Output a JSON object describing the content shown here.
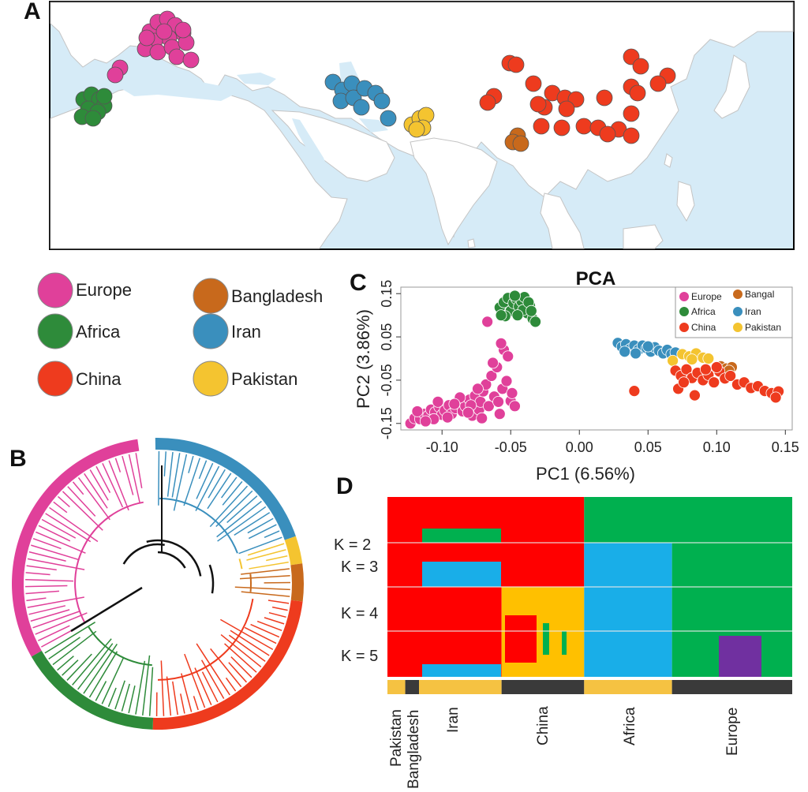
{
  "panels": {
    "a": "A",
    "b": "B",
    "c": "C",
    "d": "D"
  },
  "colors": {
    "Europe": "#e0409a",
    "Africa": "#2e8b3a",
    "China": "#ee3b1e",
    "Bangladesh": "#c8691c",
    "Iran": "#3a8fbd",
    "Pakistan": "#f4c430",
    "k_red": "#ff0000",
    "k_green": "#00b04f",
    "k_blue": "#19aee8",
    "k_yellow": "#ffc000",
    "k_purple": "#7030a0",
    "sea": "#d6ebf7",
    "land": "#ffffff",
    "bar_yellow": "#f5c242",
    "bar_dark": "#3a3a3a"
  },
  "main_legend": [
    {
      "label": "Europe",
      "color": "#e0409a"
    },
    {
      "label": "Bangladesh",
      "color": "#c8691c"
    },
    {
      "label": "Africa",
      "color": "#2e8b3a"
    },
    {
      "label": "Iran",
      "color": "#3a8fbd"
    },
    {
      "label": "China",
      "color": "#ee3b1e"
    },
    {
      "label": "Pakistan",
      "color": "#f4c430"
    }
  ],
  "chart_data": [
    {
      "type": "scatter",
      "title": "PCA",
      "xlabel": "PC1 (6.56%)",
      "ylabel": "PC2 (3.86%)",
      "xlim": [
        -0.13,
        0.155
      ],
      "ylim": [
        -0.165,
        0.165
      ],
      "xticks": [
        "-0.10",
        "-0.05",
        "0.00",
        "0.05",
        "0.10",
        "0.15"
      ],
      "xtick_values": [
        -0.1,
        -0.05,
        0.0,
        0.05,
        0.1,
        0.15
      ],
      "yticks": [
        "-0.15",
        "-0.05",
        "0.05",
        "0.15"
      ],
      "ytick_values": [
        -0.15,
        -0.05,
        0.05,
        0.15
      ],
      "legend": [
        {
          "label": "Europe",
          "color": "#e0409a"
        },
        {
          "label": "Bangal",
          "color": "#c8691c"
        },
        {
          "label": "Africa",
          "color": "#2e8b3a"
        },
        {
          "label": "Iran",
          "color": "#3a8fbd"
        },
        {
          "label": "China",
          "color": "#ee3b1e"
        },
        {
          "label": "Pakistan",
          "color": "#f4c430"
        }
      ],
      "legend_position": "top-right",
      "series": [
        {
          "name": "Europe",
          "points": [
            [
              -0.123,
              -0.15
            ],
            [
              -0.12,
              -0.138
            ],
            [
              -0.116,
              -0.14
            ],
            [
              -0.113,
              -0.128
            ],
            [
              -0.11,
              -0.132
            ],
            [
              -0.108,
              -0.118
            ],
            [
              -0.105,
              -0.124
            ],
            [
              -0.102,
              -0.112
            ],
            [
              -0.1,
              -0.13
            ],
            [
              -0.098,
              -0.12
            ],
            [
              -0.095,
              -0.108
            ],
            [
              -0.093,
              -0.128
            ],
            [
              -0.09,
              -0.115
            ],
            [
              -0.088,
              -0.1
            ],
            [
              -0.085,
              -0.122
            ],
            [
              -0.083,
              -0.11
            ],
            [
              -0.08,
              -0.095
            ],
            [
              -0.078,
              -0.132
            ],
            [
              -0.076,
              -0.086
            ],
            [
              -0.073,
              -0.118
            ],
            [
              -0.072,
              -0.1
            ],
            [
              -0.07,
              -0.076
            ],
            [
              -0.068,
              -0.06
            ],
            [
              -0.066,
              -0.11
            ],
            [
              -0.064,
              -0.04
            ],
            [
              -0.062,
              -0.088
            ],
            [
              -0.06,
              -0.02
            ],
            [
              -0.058,
              -0.128
            ],
            [
              -0.056,
              -0.07
            ],
            [
              -0.055,
              0.02
            ],
            [
              -0.053,
              -0.052
            ],
            [
              -0.052,
              0.005
            ],
            [
              -0.05,
              -0.098
            ],
            [
              -0.049,
              -0.08
            ],
            [
              -0.047,
              -0.11
            ],
            [
              -0.118,
              -0.122
            ],
            [
              -0.106,
              -0.14
            ],
            [
              -0.096,
              -0.136
            ],
            [
              -0.087,
              -0.09
            ],
            [
              -0.079,
              -0.108
            ],
            [
              -0.067,
              0.085
            ],
            [
              -0.057,
              0.035
            ],
            [
              -0.074,
              -0.07
            ],
            [
              -0.091,
              -0.105
            ],
            [
              -0.112,
              -0.145
            ],
            [
              -0.081,
              -0.125
            ],
            [
              -0.059,
              -0.1
            ],
            [
              -0.071,
              -0.138
            ],
            [
              -0.063,
              -0.01
            ],
            [
              -0.103,
              -0.1
            ]
          ]
        },
        {
          "name": "Africa",
          "points": [
            [
              -0.058,
              0.118
            ],
            [
              -0.055,
              0.13
            ],
            [
              -0.052,
              0.14
            ],
            [
              -0.05,
              0.11
            ],
            [
              -0.048,
              0.128
            ],
            [
              -0.046,
              0.138
            ],
            [
              -0.044,
              0.12
            ],
            [
              -0.042,
              0.132
            ],
            [
              -0.04,
              0.142
            ],
            [
              -0.038,
              0.105
            ],
            [
              -0.036,
              0.122
            ],
            [
              -0.034,
              0.092
            ],
            [
              -0.032,
              0.085
            ],
            [
              -0.054,
              0.098
            ],
            [
              -0.047,
              0.145
            ],
            [
              -0.041,
              0.112
            ],
            [
              -0.057,
              0.1
            ],
            [
              -0.037,
              0.13
            ],
            [
              -0.045,
              0.1
            ],
            [
              -0.035,
              0.11
            ]
          ]
        },
        {
          "name": "Iran",
          "points": [
            [
              0.028,
              0.036
            ],
            [
              0.031,
              0.027
            ],
            [
              0.034,
              0.033
            ],
            [
              0.037,
              0.022
            ],
            [
              0.04,
              0.03
            ],
            [
              0.043,
              0.02
            ],
            [
              0.046,
              0.03
            ],
            [
              0.049,
              0.024
            ],
            [
              0.052,
              0.016
            ],
            [
              0.055,
              0.026
            ],
            [
              0.058,
              0.018
            ],
            [
              0.061,
              0.012
            ],
            [
              0.064,
              0.02
            ],
            [
              0.067,
              0.01
            ],
            [
              0.07,
              0.014
            ],
            [
              0.033,
              0.016
            ],
            [
              0.041,
              0.012
            ],
            [
              0.05,
              0.028
            ]
          ]
        },
        {
          "name": "Pakistan",
          "points": [
            [
              0.068,
              -0.005
            ],
            [
              0.075,
              0.01
            ],
            [
              0.08,
              0.005
            ],
            [
              0.085,
              0.012
            ],
            [
              0.09,
              0.002
            ],
            [
              0.094,
              0.0
            ],
            [
              0.082,
              -0.002
            ]
          ]
        },
        {
          "name": "Bangladesh",
          "points": [
            [
              0.103,
              -0.018
            ],
            [
              0.107,
              -0.023
            ],
            [
              0.111,
              -0.02
            ],
            [
              0.109,
              -0.028
            ]
          ]
        },
        {
          "name": "China",
          "points": [
            [
              0.07,
              -0.028
            ],
            [
              0.074,
              -0.04
            ],
            [
              0.078,
              -0.025
            ],
            [
              0.082,
              -0.045
            ],
            [
              0.086,
              -0.033
            ],
            [
              0.09,
              -0.05
            ],
            [
              0.094,
              -0.038
            ],
            [
              0.098,
              -0.055
            ],
            [
              0.102,
              -0.03
            ],
            [
              0.106,
              -0.046
            ],
            [
              0.11,
              -0.04
            ],
            [
              0.115,
              -0.06
            ],
            [
              0.12,
              -0.055
            ],
            [
              0.125,
              -0.068
            ],
            [
              0.13,
              -0.064
            ],
            [
              0.135,
              -0.075
            ],
            [
              0.14,
              -0.08
            ],
            [
              0.145,
              -0.076
            ],
            [
              0.072,
              -0.07
            ],
            [
              0.084,
              -0.085
            ],
            [
              0.04,
              -0.075
            ],
            [
              0.092,
              -0.025
            ],
            [
              0.1,
              -0.02
            ],
            [
              0.076,
              -0.055
            ],
            [
              0.143,
              -0.09
            ]
          ]
        }
      ]
    },
    {
      "type": "bar",
      "title": "",
      "k_labels": [
        "K = 2",
        "K = 3",
        "K = 4",
        "K = 5"
      ],
      "population_labels": [
        "Pakistan",
        "Bangladesh",
        "Iran",
        "China",
        "Africa",
        "Europe"
      ],
      "population_bar": [
        {
          "label": "Pakistan",
          "color": "#f5c242",
          "fraction": 0.044
        },
        {
          "label": "Bangladesh",
          "color": "#3a3a3a",
          "fraction": 0.034
        },
        {
          "label": "Iran",
          "color": "#f5c242",
          "fraction": 0.204
        },
        {
          "label": "China",
          "color": "#3a3a3a",
          "fraction": 0.204
        },
        {
          "label": "Africa",
          "color": "#f5c242",
          "fraction": 0.217
        },
        {
          "label": "Europe",
          "color": "#3a3a3a",
          "fraction": 0.297
        }
      ]
    }
  ]
}
